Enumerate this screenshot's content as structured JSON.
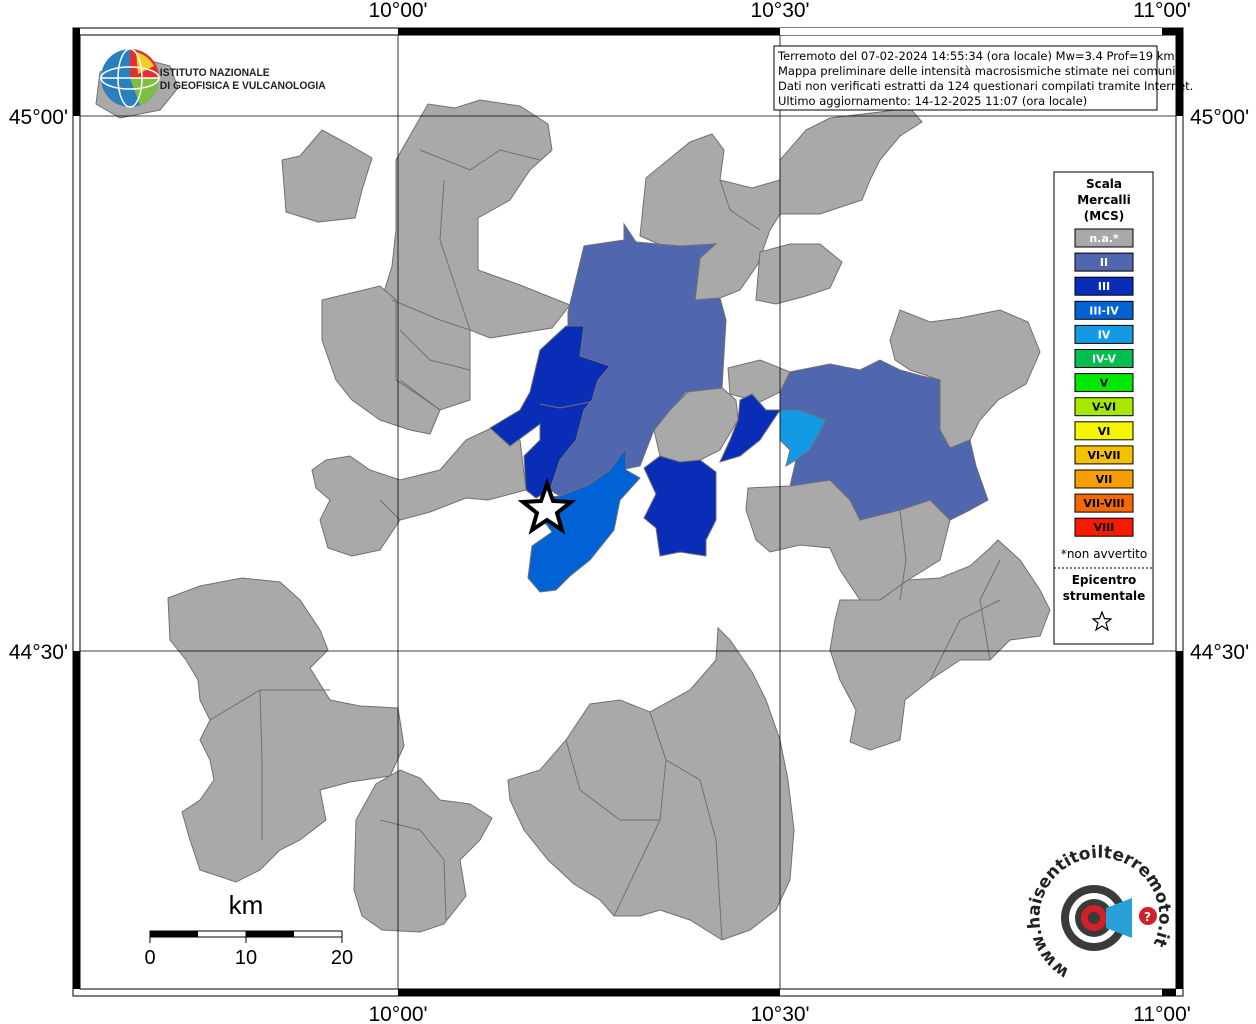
{
  "header": {
    "line1": "Terremoto del 07-02-2024 14:55:34 (ora locale) Mw=3.4 Prof=19 km",
    "line2": "Mappa preliminare delle intensità macrosismiche stimate nei comuni",
    "line3": "Dati non verificati estratti da 124 questionari compilati tramite Internet.",
    "line4": "Ultimo aggiornamento: 14-12-2025 11:07 (ora locale)"
  },
  "logo": {
    "line1": "ISTITUTO NAZIONALE",
    "line2": "DI GEOFISICA E VULCANOLOGIA"
  },
  "axes": {
    "top": [
      "10°00'",
      "10°30'",
      "11°00'"
    ],
    "bottom": [
      "10°00'",
      "10°30'",
      "11°00'"
    ],
    "left": [
      "45°00'",
      "44°30'"
    ],
    "right": [
      "45°00'",
      "44°30'"
    ]
  },
  "legend": {
    "title1": "Scala",
    "title2": "Mercalli",
    "title3": "(MCS)",
    "items": [
      {
        "label": "n.a.*",
        "color": "#a9a9a9"
      },
      {
        "label": "II",
        "color": "#5066ae"
      },
      {
        "label": "III",
        "color": "#0a2db8"
      },
      {
        "label": "III-IV",
        "color": "#0062d4"
      },
      {
        "label": "IV",
        "color": "#149ae4"
      },
      {
        "label": "IV-V",
        "color": "#00bf4f"
      },
      {
        "label": "V",
        "color": "#00e800"
      },
      {
        "label": "V-VI",
        "color": "#a6e800"
      },
      {
        "label": "VI",
        "color": "#f5f500"
      },
      {
        "label": "VI-VII",
        "color": "#f5c000"
      },
      {
        "label": "VII",
        "color": "#f5a000"
      },
      {
        "label": "VII-VIII",
        "color": "#f56a00"
      },
      {
        "label": "VIII",
        "color": "#f51a00"
      }
    ],
    "note": "*non avvertito",
    "epi1": "Epicentro",
    "epi2": "strumentale"
  },
  "scalebar": {
    "unit": "km",
    "ticks": [
      "0",
      "10",
      "20"
    ]
  },
  "brand": {
    "text": "www.haisentitoilterremoto.it"
  },
  "colors": {
    "na": "#a9a9a9",
    "II": "#5066ae",
    "III": "#0a2db8",
    "III-IV": "#0062d4",
    "IV": "#149ae4"
  }
}
